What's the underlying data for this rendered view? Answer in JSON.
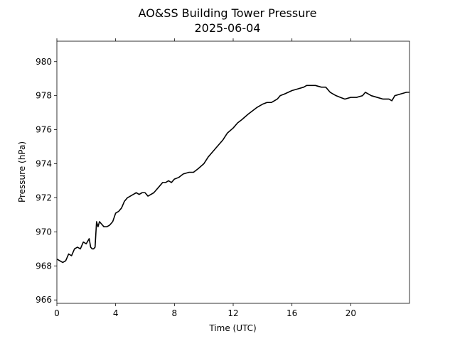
{
  "chart_data": {
    "type": "line",
    "title": "AO&SS Building Tower Pressure",
    "subtitle": "2025-06-04",
    "xlabel": "Time (UTC)",
    "ylabel": "Pressure (hPa)",
    "xlim": [
      0,
      24
    ],
    "ylim": [
      965.8,
      981.2
    ],
    "xticks": [
      0,
      4,
      8,
      12,
      16,
      20
    ],
    "yticks": [
      966,
      968,
      970,
      972,
      974,
      976,
      978,
      980
    ],
    "grid": false,
    "legend": "none",
    "line_color": "#000000",
    "series": [
      {
        "x": [
          0,
          0.4,
          0.6,
          0.8,
          1.0,
          1.2,
          1.4,
          1.6,
          1.8,
          2.0,
          2.2,
          2.3,
          2.4,
          2.5,
          2.6,
          2.7,
          2.8,
          2.9,
          3.0,
          3.2,
          3.4,
          3.6,
          3.8,
          4.0,
          4.2,
          4.4,
          4.6,
          4.8,
          5.0,
          5.2,
          5.4,
          5.6,
          5.8,
          6.0,
          6.2,
          6.4,
          6.6,
          6.8,
          7.0,
          7.2,
          7.4,
          7.6,
          7.8,
          8.0,
          8.3,
          8.6,
          9.0,
          9.3,
          9.6,
          10.0,
          10.3,
          10.6,
          11.0,
          11.3,
          11.6,
          12.0,
          12.3,
          12.6,
          13.0,
          13.3,
          13.6,
          14.0,
          14.3,
          14.6,
          15.0,
          15.2,
          15.5,
          16.0,
          16.4,
          16.8,
          17.0,
          17.3,
          17.6,
          18.0,
          18.3,
          18.6,
          19.0,
          19.3,
          19.6,
          20.0,
          20.4,
          20.8,
          21.0,
          21.4,
          21.8,
          22.2,
          22.6,
          22.8,
          23.0,
          23.4,
          23.8,
          24.0
        ],
        "y": [
          968.4,
          968.2,
          968.3,
          968.7,
          968.6,
          969.0,
          969.1,
          969.0,
          969.4,
          969.3,
          969.6,
          969.1,
          969.0,
          969.0,
          969.1,
          970.6,
          970.3,
          970.6,
          970.5,
          970.3,
          970.3,
          970.4,
          970.6,
          971.1,
          971.2,
          971.4,
          971.8,
          972.0,
          972.1,
          972.2,
          972.3,
          972.2,
          972.3,
          972.3,
          972.1,
          972.2,
          972.3,
          972.5,
          972.7,
          972.9,
          972.9,
          973.0,
          972.9,
          973.1,
          973.2,
          973.4,
          973.5,
          973.5,
          973.7,
          974.0,
          974.4,
          974.7,
          975.1,
          975.4,
          975.8,
          976.1,
          976.4,
          976.6,
          976.9,
          977.1,
          977.3,
          977.5,
          977.6,
          977.6,
          977.8,
          978.0,
          978.1,
          978.3,
          978.4,
          978.5,
          978.6,
          978.6,
          978.6,
          978.5,
          978.5,
          978.2,
          978.0,
          977.9,
          977.8,
          977.9,
          977.9,
          978.0,
          978.2,
          978.0,
          977.9,
          977.8,
          977.8,
          977.7,
          978.0,
          978.1,
          978.2,
          978.2
        ]
      }
    ]
  }
}
